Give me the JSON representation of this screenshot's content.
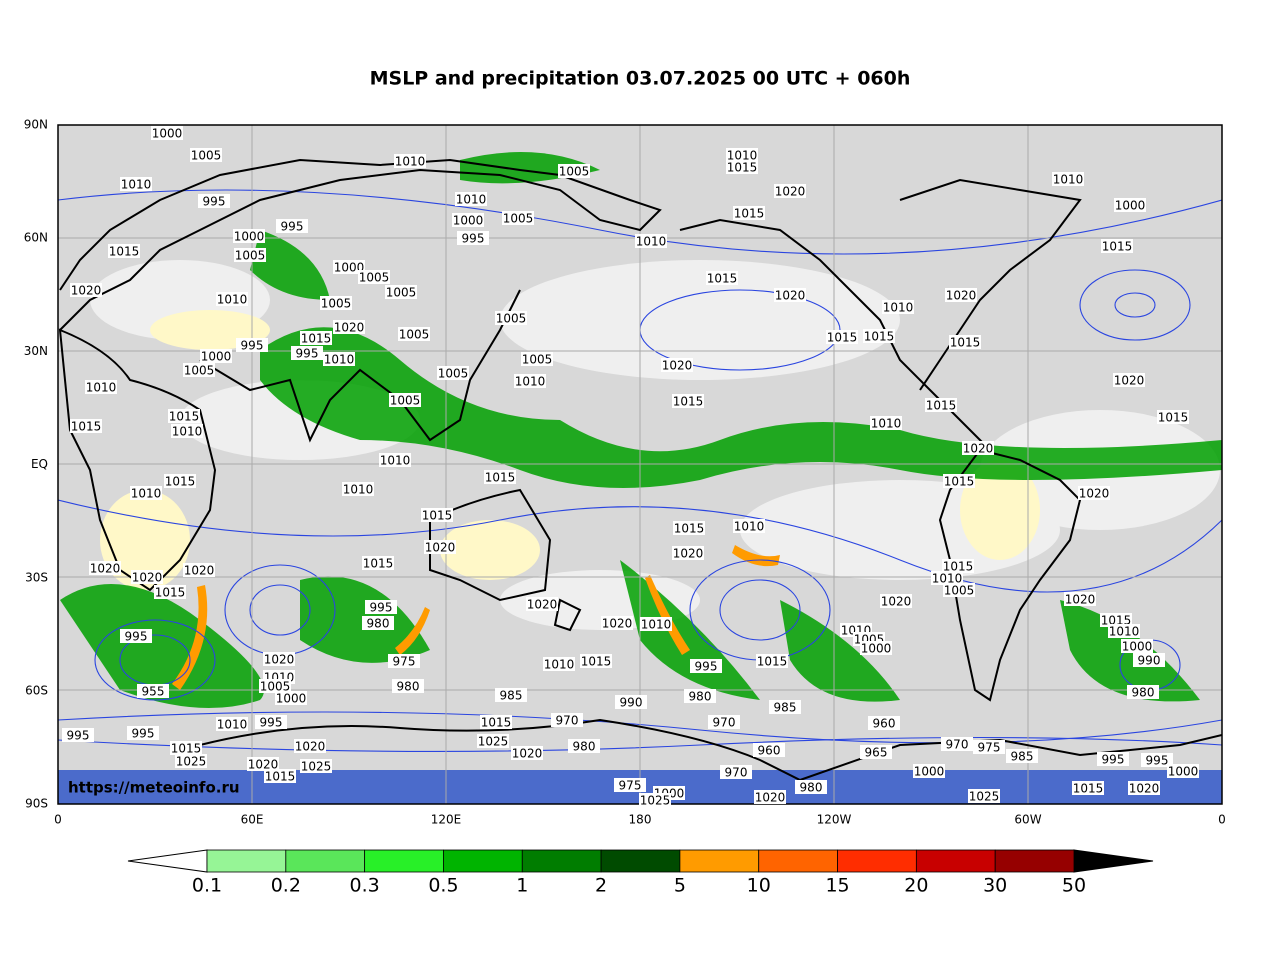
{
  "header": {
    "title": "MSLP and precipitation 03.07.2025 00 UTC + 060h"
  },
  "map": {
    "lat_labels": [
      "90N",
      "60N",
      "30N",
      "EQ",
      "30S",
      "60S",
      "90S"
    ],
    "lon_labels": [
      "0",
      "60E",
      "120E",
      "180",
      "120W",
      "60W",
      "0"
    ],
    "watermark": "https://meteoinfo.ru",
    "isobar_labels": [
      "1000",
      "1005",
      "1010",
      "1005",
      "1010",
      "1015",
      "1010",
      "995",
      "995",
      "1010",
      "1000",
      "1005",
      "995",
      "1020",
      "1015",
      "1010",
      "1000",
      "1005",
      "1015",
      "1000",
      "1005",
      "1015",
      "1020",
      "1020",
      "1010",
      "1005",
      "1005",
      "1010",
      "1020",
      "1010",
      "1000",
      "1015",
      "1005",
      "1020",
      "1005",
      "995",
      "1015",
      "995",
      "1015",
      "1015",
      "1015",
      "1005",
      "1000",
      "1010",
      "1005",
      "1020",
      "1005",
      "1010",
      "1020",
      "1010",
      "1005",
      "1015",
      "1015",
      "1015",
      "1010",
      "1015",
      "1010",
      "1015",
      "1020",
      "1010",
      "1015",
      "1010",
      "1015",
      "1010",
      "1015",
      "1020",
      "1015",
      "1015",
      "1010",
      "1020",
      "1020",
      "1020",
      "1020",
      "1020",
      "1015",
      "1015",
      "1015",
      "1010",
      "1005",
      "1020",
      "1020",
      "1020",
      "995",
      "980",
      "1020",
      "1010",
      "995",
      "1015",
      "1010",
      "1010",
      "1005",
      "1000",
      "1000",
      "1020",
      "1010",
      "1005",
      "975",
      "1010",
      "1015",
      "995",
      "1015",
      "990",
      "980",
      "955",
      "1000",
      "985",
      "990",
      "980",
      "985",
      "980",
      "970",
      "970",
      "1015",
      "960",
      "995",
      "995",
      "1010",
      "995",
      "1025",
      "1020",
      "980",
      "960",
      "965",
      "970",
      "975",
      "985",
      "1015",
      "1025",
      "1020",
      "1020",
      "1025",
      "1015",
      "970",
      "1000",
      "995",
      "995",
      "1000",
      "975",
      "1000",
      "1025",
      "1020",
      "980",
      "1025",
      "1015",
      "1020"
    ]
  },
  "colorbar": {
    "levels": [
      0.1,
      0.2,
      0.3,
      0.5,
      1,
      2,
      5,
      10,
      15,
      20,
      30,
      50
    ],
    "under_color": "#ffffff",
    "over_color": "#000000",
    "colors": [
      "#96f596",
      "#5ae65a",
      "#28f028",
      "#00b400",
      "#007d00",
      "#004b00",
      "#ff9b00",
      "#ff6400",
      "#ff2d00",
      "#c80000",
      "#960000"
    ]
  }
}
